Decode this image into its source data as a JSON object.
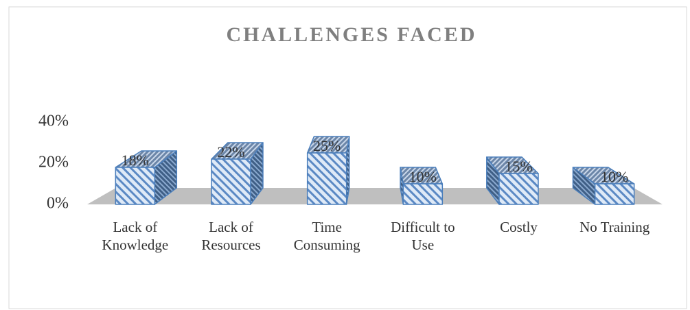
{
  "chart_data": {
    "type": "bar3d",
    "title": "CHALLENGES FACED",
    "categories": [
      "Lack of Knowledge",
      "Lack of Resources",
      "Time Consuming",
      "Difficult to Use",
      "Costly",
      "No Training"
    ],
    "values": [
      18,
      22,
      25,
      10,
      15,
      10
    ],
    "value_labels": [
      "18%",
      "22%",
      "25%",
      "10%",
      "15%",
      "10%"
    ],
    "color": "#4a7ebb",
    "ylim": [
      0,
      40
    ],
    "yticks": [
      {
        "value": 0,
        "label": "0%"
      },
      {
        "value": 20,
        "label": "20%"
      },
      {
        "value": 40,
        "label": "40%"
      }
    ]
  }
}
